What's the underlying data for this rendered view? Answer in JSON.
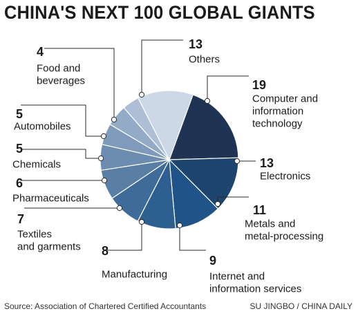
{
  "title": "CHINA'S NEXT 100 GLOBAL GIANTS",
  "source": "Source: Association of Chartered Certified Accountants",
  "credit": "SU JINGBO / CHINA DAILY",
  "chart_data": {
    "type": "pie",
    "total": 100,
    "slices": [
      {
        "value": 19,
        "value_label": "19",
        "label_lines": [
          "Computer and",
          "information",
          "technology"
        ],
        "color": "#1f3354"
      },
      {
        "value": 13,
        "value_label": "13",
        "label_lines": [
          "Electronics"
        ],
        "color": "#1e4470"
      },
      {
        "value": 11,
        "value_label": "11",
        "label_lines": [
          "Metals and",
          "metal-processing"
        ],
        "color": "#205488"
      },
      {
        "value": 9,
        "value_label": "9",
        "label_lines": [
          "Internet and",
          "information services"
        ],
        "color": "#2d5f91"
      },
      {
        "value": 8,
        "value_label": "8",
        "label_lines": [
          "Manufacturing"
        ],
        "color": "#3e6b98"
      },
      {
        "value": 7,
        "value_label": "7",
        "label_lines": [
          "Textiles",
          "and garments"
        ],
        "color": "#5b7ea4"
      },
      {
        "value": 6,
        "value_label": "6",
        "label_lines": [
          "Pharmaceuticals"
        ],
        "color": "#6c8cb0"
      },
      {
        "value": 5,
        "value_label": "5",
        "label_lines": [
          "Chemicals"
        ],
        "color": "#7f9aba"
      },
      {
        "value": 5,
        "value_label": "5",
        "label_lines": [
          "Automobiles"
        ],
        "color": "#94abc7"
      },
      {
        "value": 4,
        "value_label": "4",
        "label_lines": [
          "Food and",
          "beverages"
        ],
        "color": "#aebfd5"
      },
      {
        "value": 13,
        "value_label": "13",
        "label_lines": [
          "Others"
        ],
        "color": "#cdd8e6"
      }
    ],
    "legend": "none",
    "grid": false
  }
}
